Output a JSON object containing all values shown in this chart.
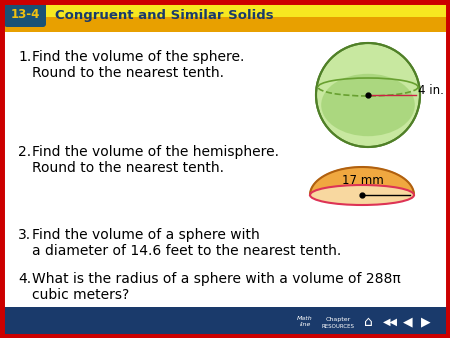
{
  "title_box_color": "#1a5276",
  "title_label": "13-4",
  "title_text": "Congruent and Similar Solids",
  "title_text_color": "#f0c010",
  "header_bg_top": "#f5e020",
  "header_bg_bot": "#e8a800",
  "bg_color": "#ffffff",
  "border_color": "#cc0000",
  "items": [
    {
      "num": "1.",
      "line1": "Find the volume of the sphere.",
      "line2": "Round to the nearest tenth.",
      "shape": "sphere",
      "label": "4 in."
    },
    {
      "num": "2.",
      "line1": "Find the volume of the hemisphere.",
      "line2": "Round to the nearest tenth.",
      "shape": "hemisphere",
      "label": "17 mm"
    },
    {
      "num": "3.",
      "line1": "Find the volume of a sphere with",
      "line2": "a diameter of 14.6 feet to the nearest tenth.",
      "shape": null,
      "label": null
    },
    {
      "num": "4.",
      "line1": "What is the radius of a sphere with a volume of 288π",
      "line2": "cubic meters?",
      "shape": null,
      "label": null
    }
  ],
  "footer_bg": "#1a3a6b",
  "sphere_green_light": "#c8e8a0",
  "sphere_green_mid": "#90c860",
  "sphere_green_dark": "#68a030",
  "sphere_green_edge": "#508028",
  "hemisphere_orange_light": "#f8d8a0",
  "hemisphere_orange_mid": "#f0a840",
  "hemisphere_orange_dark": "#d07818",
  "hemisphere_orange_edge": "#b06010",
  "text_fontsize": 10.0,
  "num_fontsize": 10.0
}
